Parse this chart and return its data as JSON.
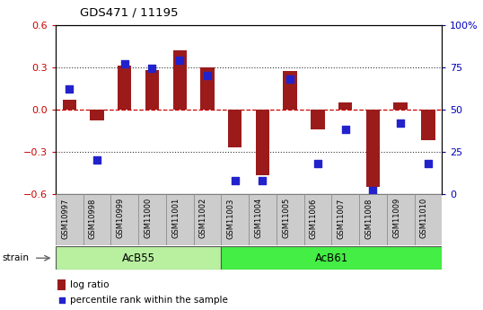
{
  "title": "GDS471 / 11195",
  "samples": [
    "GSM10997",
    "GSM10998",
    "GSM10999",
    "GSM11000",
    "GSM11001",
    "GSM11002",
    "GSM11003",
    "GSM11004",
    "GSM11005",
    "GSM11006",
    "GSM11007",
    "GSM11008",
    "GSM11009",
    "GSM11010"
  ],
  "log_ratio": [
    0.07,
    -0.08,
    0.31,
    0.28,
    0.42,
    0.3,
    -0.27,
    -0.47,
    0.27,
    -0.14,
    0.05,
    -0.55,
    0.05,
    -0.22
  ],
  "percentile": [
    62,
    20,
    77,
    74,
    79,
    70,
    8,
    8,
    68,
    18,
    38,
    2,
    42,
    18
  ],
  "groups": [
    {
      "label": "AcB55",
      "start": 0,
      "end": 5,
      "color": "#aeed9e"
    },
    {
      "label": "AcB61",
      "start": 6,
      "end": 13,
      "color": "#44dd44"
    }
  ],
  "bar_color": "#9b1b1b",
  "dot_color": "#2222cc",
  "ylim_left": [
    -0.6,
    0.6
  ],
  "ylim_right": [
    0,
    100
  ],
  "yticks_left": [
    -0.6,
    -0.3,
    0.0,
    0.3,
    0.6
  ],
  "yticks_right": [
    0,
    25,
    50,
    75,
    100
  ],
  "left_tick_color": "#cc0000",
  "right_tick_color": "#0000bb",
  "hline_color": "#cc0000",
  "dotline_color": "#333333",
  "strain_label": "strain",
  "legend_log": "log ratio",
  "legend_pct": "percentile rank within the sample",
  "bar_width": 0.5,
  "dot_size": 28,
  "acb55_color": "#b8f0a0",
  "acb61_color": "#44ee44",
  "xtick_bg": "#cccccc"
}
